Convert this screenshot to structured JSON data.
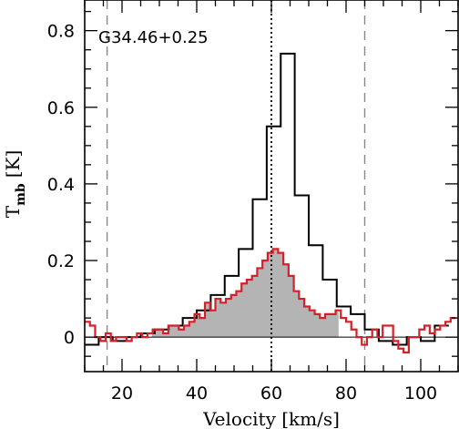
{
  "chart_data": {
    "type": "line",
    "annotation": "G34.46+0.25",
    "xlabel": "Velocity [km/s]",
    "ylabel_main": "T",
    "ylabel_sub": "mb",
    "ylabel_unit": "[K]",
    "xlim": [
      10,
      110
    ],
    "ylim": [
      -0.09,
      0.88
    ],
    "x_major_ticks": [
      20,
      40,
      60,
      80,
      100
    ],
    "x_minor_step": 5,
    "y_major_ticks": [
      0,
      0.2,
      0.4,
      0.6,
      0.8
    ],
    "y_tick_labels": [
      "0",
      "0.2",
      "0.4",
      "0.6",
      "0.8"
    ],
    "y_minor_step": 0.05,
    "vlines": [
      {
        "x": 16,
        "style": "dashed"
      },
      {
        "x": 60,
        "style": "dotted"
      },
      {
        "x": 85,
        "style": "dashed"
      }
    ],
    "series": [
      {
        "color": "#000000",
        "style": "step",
        "bin_width": 3.75,
        "x": [
          10,
          13.75,
          17.5,
          21.25,
          25,
          28.75,
          32.5,
          36.25,
          40,
          43.75,
          47.5,
          51.25,
          55,
          58.75,
          62.5,
          66.25,
          70,
          73.75,
          77.5,
          81.25,
          85,
          88.75,
          92.5,
          96.25,
          100,
          103.75
        ],
        "values": [
          -0.02,
          0.0,
          -0.01,
          0.0,
          0.01,
          0.02,
          0.03,
          0.05,
          0.07,
          0.11,
          0.16,
          0.23,
          0.36,
          0.55,
          0.74,
          0.37,
          0.24,
          0.15,
          0.08,
          0.06,
          0.02,
          -0.01,
          -0.02,
          0.0,
          -0.01,
          0.03
        ]
      },
      {
        "color": "#d4202a",
        "style": "step",
        "fill": "#b4b4b4",
        "fill_range": [
          28,
          78
        ],
        "bin_width": 1.4,
        "x": [
          10,
          11.4,
          12.8,
          14.2,
          15.6,
          17,
          18.4,
          19.8,
          21.2,
          22.6,
          24,
          25.4,
          26.8,
          28.2,
          29.6,
          31,
          32.4,
          33.8,
          35.2,
          36.6,
          38,
          39.4,
          40.8,
          42.2,
          43.6,
          45,
          46.4,
          47.8,
          49.2,
          50.6,
          52,
          53.4,
          54.8,
          56.2,
          57.6,
          59,
          60.4,
          61.8,
          63.2,
          64.6,
          66,
          67.4,
          68.8,
          70.2,
          71.6,
          73,
          74.4,
          75.8,
          77.2,
          78.6,
          80,
          81.4,
          82.8,
          84.2,
          85.6,
          87,
          88.4,
          89.8,
          91.2,
          92.6,
          94,
          95.4,
          96.8,
          98.2,
          99.6,
          101,
          102.4,
          103.8,
          105.2,
          106.6,
          108
        ],
        "values": [
          0.04,
          0.03,
          0.0,
          -0.01,
          0.01,
          -0.01,
          0.0,
          0.0,
          -0.01,
          0.0,
          0.01,
          0.0,
          0.01,
          0.02,
          0.02,
          0.01,
          0.03,
          0.03,
          0.02,
          0.03,
          0.04,
          0.06,
          0.05,
          0.09,
          0.07,
          0.1,
          0.09,
          0.1,
          0.11,
          0.12,
          0.14,
          0.15,
          0.16,
          0.18,
          0.2,
          0.22,
          0.23,
          0.22,
          0.19,
          0.16,
          0.12,
          0.1,
          0.08,
          0.07,
          0.06,
          0.05,
          0.06,
          0.06,
          0.07,
          0.05,
          0.04,
          0.02,
          0.0,
          -0.02,
          0.0,
          0.02,
          0.0,
          0.03,
          0.03,
          -0.01,
          -0.03,
          -0.04,
          0.0,
          0.0,
          0.02,
          0.03,
          0.01,
          0.02,
          0.03,
          0.04,
          0.05
        ]
      }
    ]
  }
}
